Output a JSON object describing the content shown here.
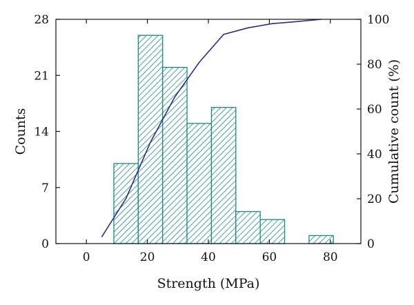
{
  "chart_data": {
    "type": "bar",
    "xlabel": "Strength (MPa)",
    "ylabel_left": "Counts",
    "ylabel_right": "Cumulative count (%)",
    "xlim": [
      -10,
      90
    ],
    "ylim_left": [
      0,
      28
    ],
    "ylim_right": [
      0,
      100
    ],
    "x_ticks": [
      0,
      20,
      40,
      60,
      80
    ],
    "y_left_ticks": [
      0,
      7,
      14,
      21,
      28
    ],
    "y_right_ticks": [
      0,
      20,
      40,
      60,
      80,
      100
    ],
    "grid": false,
    "bars": {
      "bin_width": 8,
      "centers": [
        13,
        21,
        29,
        37,
        45,
        53,
        61,
        77
      ],
      "counts": [
        10,
        26,
        22,
        15,
        17,
        4,
        3,
        1
      ],
      "hatch_color": "#1a8a86"
    },
    "cumulative_line": {
      "x": [
        5,
        13,
        21,
        29,
        37,
        45,
        53,
        61,
        69,
        77
      ],
      "y": [
        2.9,
        20.2,
        45.2,
        65.4,
        80.8,
        93.3,
        96.2,
        98.1,
        99.0,
        100.0
      ],
      "color": "#2c2a84"
    }
  }
}
